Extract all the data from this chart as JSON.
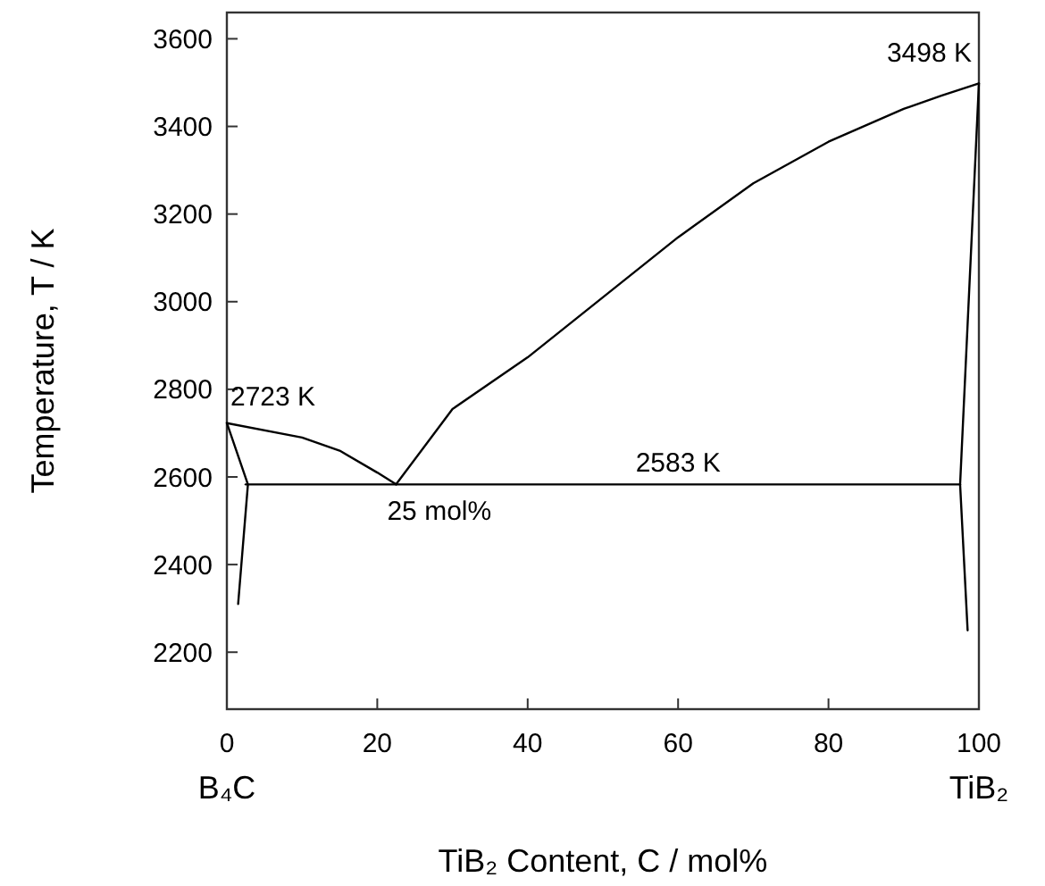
{
  "chart_data": {
    "type": "line",
    "xlabel": "TiB₂ Content, C / mol%",
    "ylabel": "Temperature, T / K",
    "xlim": [
      0,
      100
    ],
    "ylim": [
      2070,
      3660
    ],
    "xticks": [
      0,
      20,
      40,
      60,
      80,
      100
    ],
    "yticks": [
      2200,
      2400,
      2600,
      2800,
      3000,
      3200,
      3400,
      3600
    ],
    "grid": false,
    "marker": "none",
    "line_style": "solid",
    "series": [
      {
        "color": "#000000",
        "x": [
          0,
          10,
          15,
          20,
          22.5
        ],
        "values": [
          2723,
          2690,
          2660,
          2610,
          2583
        ]
      },
      {
        "color": "#000000",
        "x": [
          22.5,
          30,
          40,
          50,
          60,
          70,
          80,
          90,
          95,
          100
        ],
        "values": [
          2583,
          2755,
          2873,
          3010,
          3147,
          3270,
          3365,
          3440,
          3470,
          3498
        ]
      },
      {
        "color": "#000000",
        "x": [
          2.5,
          97.5
        ],
        "values": [
          2583,
          2583
        ]
      },
      {
        "color": "#000000",
        "x": [
          0,
          2.8,
          1.5
        ],
        "values": [
          2723,
          2583,
          2310
        ]
      },
      {
        "color": "#000000",
        "x": [
          100,
          97.5,
          98.5
        ],
        "values": [
          3498,
          2583,
          2250
        ]
      }
    ],
    "annotations": [
      {
        "text": "2723 K",
        "x": 0,
        "y": 2723
      },
      {
        "text": "3498 K",
        "x": 100,
        "y": 3498
      },
      {
        "text": "2583 K",
        "x": 60,
        "y": 2583
      },
      {
        "text": "25 mol%",
        "x": 22.5,
        "y": 2583
      },
      "B₄C",
      "TiB₂"
    ]
  }
}
